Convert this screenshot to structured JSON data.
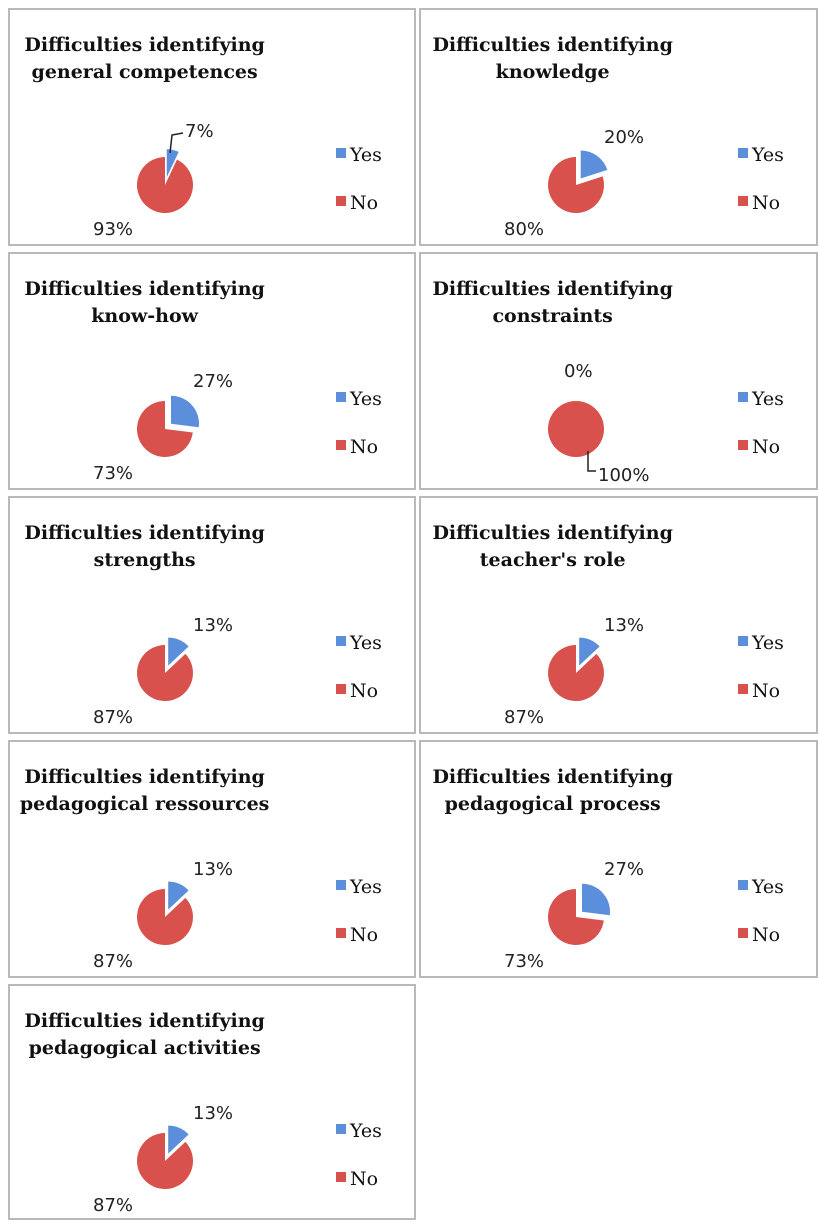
{
  "colors": {
    "yes": "#5b8fdc",
    "no": "#d8514d"
  },
  "chart_data": [
    {
      "type": "pie",
      "title": "Difficulties identifying\ngeneral competences",
      "categories": [
        "Yes",
        "No"
      ],
      "values": [
        7,
        93
      ],
      "labels": [
        "7%",
        "93%"
      ],
      "legend": [
        "Yes",
        "No"
      ]
    },
    {
      "type": "pie",
      "title": "Difficulties identifying\nknowledge",
      "categories": [
        "Yes",
        "No"
      ],
      "values": [
        20,
        80
      ],
      "labels": [
        "20%",
        "80%"
      ],
      "legend": [
        "Yes",
        "No"
      ]
    },
    {
      "type": "pie",
      "title": "Difficulties identifying\nknow-how",
      "categories": [
        "Yes",
        "No"
      ],
      "values": [
        27,
        73
      ],
      "labels": [
        "27%",
        "73%"
      ],
      "legend": [
        "Yes",
        "No"
      ]
    },
    {
      "type": "pie",
      "title": "Difficulties identifying\nconstraints",
      "categories": [
        "Yes",
        "No"
      ],
      "values": [
        0,
        100
      ],
      "labels": [
        "0%",
        "100%"
      ],
      "legend": [
        "Yes",
        "No"
      ]
    },
    {
      "type": "pie",
      "title": "Difficulties identifying\nstrengths",
      "categories": [
        "Yes",
        "No"
      ],
      "values": [
        13,
        87
      ],
      "labels": [
        "13%",
        "87%"
      ],
      "legend": [
        "Yes",
        "No"
      ]
    },
    {
      "type": "pie",
      "title": "Difficulties identifying\nteacher's role",
      "categories": [
        "Yes",
        "No"
      ],
      "values": [
        13,
        87
      ],
      "labels": [
        "13%",
        "87%"
      ],
      "legend": [
        "Yes",
        "No"
      ]
    },
    {
      "type": "pie",
      "title": "Difficulties identifying\npedagogical ressources",
      "categories": [
        "Yes",
        "No"
      ],
      "values": [
        13,
        87
      ],
      "labels": [
        "13%",
        "87%"
      ],
      "legend": [
        "Yes",
        "No"
      ]
    },
    {
      "type": "pie",
      "title": "Difficulties identifying\npedagogical process",
      "categories": [
        "Yes",
        "No"
      ],
      "values": [
        27,
        73
      ],
      "labels": [
        "27%",
        "73%"
      ],
      "legend": [
        "Yes",
        "No"
      ]
    },
    {
      "type": "pie",
      "title": "Difficulties identifying\npedagogical activities",
      "categories": [
        "Yes",
        "No"
      ],
      "values": [
        13,
        87
      ],
      "labels": [
        "13%",
        "87%"
      ],
      "legend": [
        "Yes",
        "No"
      ]
    }
  ]
}
